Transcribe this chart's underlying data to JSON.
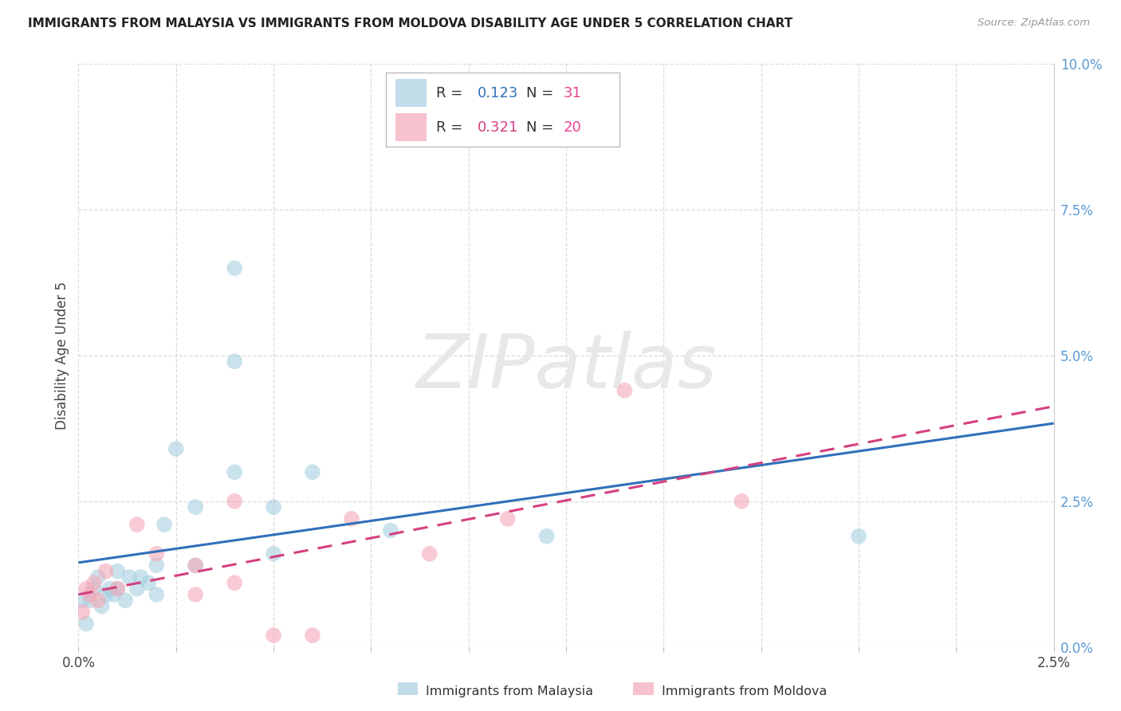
{
  "title": "IMMIGRANTS FROM MALAYSIA VS IMMIGRANTS FROM MOLDOVA DISABILITY AGE UNDER 5 CORRELATION CHART",
  "source": "Source: ZipAtlas.com",
  "ylabel": "Disability Age Under 5",
  "color_malaysia": "#a8cfe0",
  "color_moldova": "#f4a9b8",
  "color_malaysia_line": "#3070b8",
  "color_moldova_line": "#d44080",
  "r_malaysia": 0.123,
  "n_malaysia": 31,
  "r_moldova": 0.321,
  "n_moldova": 20,
  "malaysia_x": [
    0.0001,
    0.0002,
    0.0003,
    0.0004,
    0.0005,
    0.0006,
    0.0007,
    0.0008,
    0.0009,
    0.001,
    0.001,
    0.0012,
    0.0013,
    0.0015,
    0.0016,
    0.0018,
    0.002,
    0.002,
    0.0022,
    0.0025,
    0.003,
    0.003,
    0.004,
    0.004,
    0.004,
    0.005,
    0.005,
    0.006,
    0.008,
    0.012,
    0.02
  ],
  "malaysia_y": [
    0.008,
    0.004,
    0.008,
    0.01,
    0.012,
    0.007,
    0.009,
    0.01,
    0.009,
    0.01,
    0.013,
    0.008,
    0.012,
    0.01,
    0.012,
    0.011,
    0.009,
    0.014,
    0.021,
    0.034,
    0.024,
    0.014,
    0.065,
    0.03,
    0.049,
    0.016,
    0.024,
    0.03,
    0.02,
    0.019,
    0.019
  ],
  "moldova_x": [
    0.0001,
    0.0002,
    0.0003,
    0.0004,
    0.0005,
    0.0007,
    0.001,
    0.0015,
    0.002,
    0.003,
    0.003,
    0.004,
    0.004,
    0.005,
    0.006,
    0.007,
    0.009,
    0.011,
    0.014,
    0.017
  ],
  "moldova_y": [
    0.006,
    0.01,
    0.009,
    0.011,
    0.008,
    0.013,
    0.01,
    0.021,
    0.016,
    0.014,
    0.009,
    0.011,
    0.025,
    0.002,
    0.002,
    0.022,
    0.016,
    0.022,
    0.044,
    0.025
  ],
  "xmin": 0.0,
  "xmax": 0.025,
  "ymin": 0.0,
  "ymax": 0.1,
  "background_color": "#ffffff",
  "grid_color": "#d8d8d8",
  "y_ticks": [
    0.0,
    0.025,
    0.05,
    0.075,
    0.1
  ],
  "y_tick_labels": [
    "0.0%",
    "2.5%",
    "5.0%",
    "7.5%",
    "10.0%"
  ],
  "x_ticks": [
    0.0,
    0.0025,
    0.005,
    0.0075,
    0.01,
    0.0125,
    0.015,
    0.0175,
    0.02,
    0.0225,
    0.025
  ],
  "watermark_text": "ZIPatlas"
}
